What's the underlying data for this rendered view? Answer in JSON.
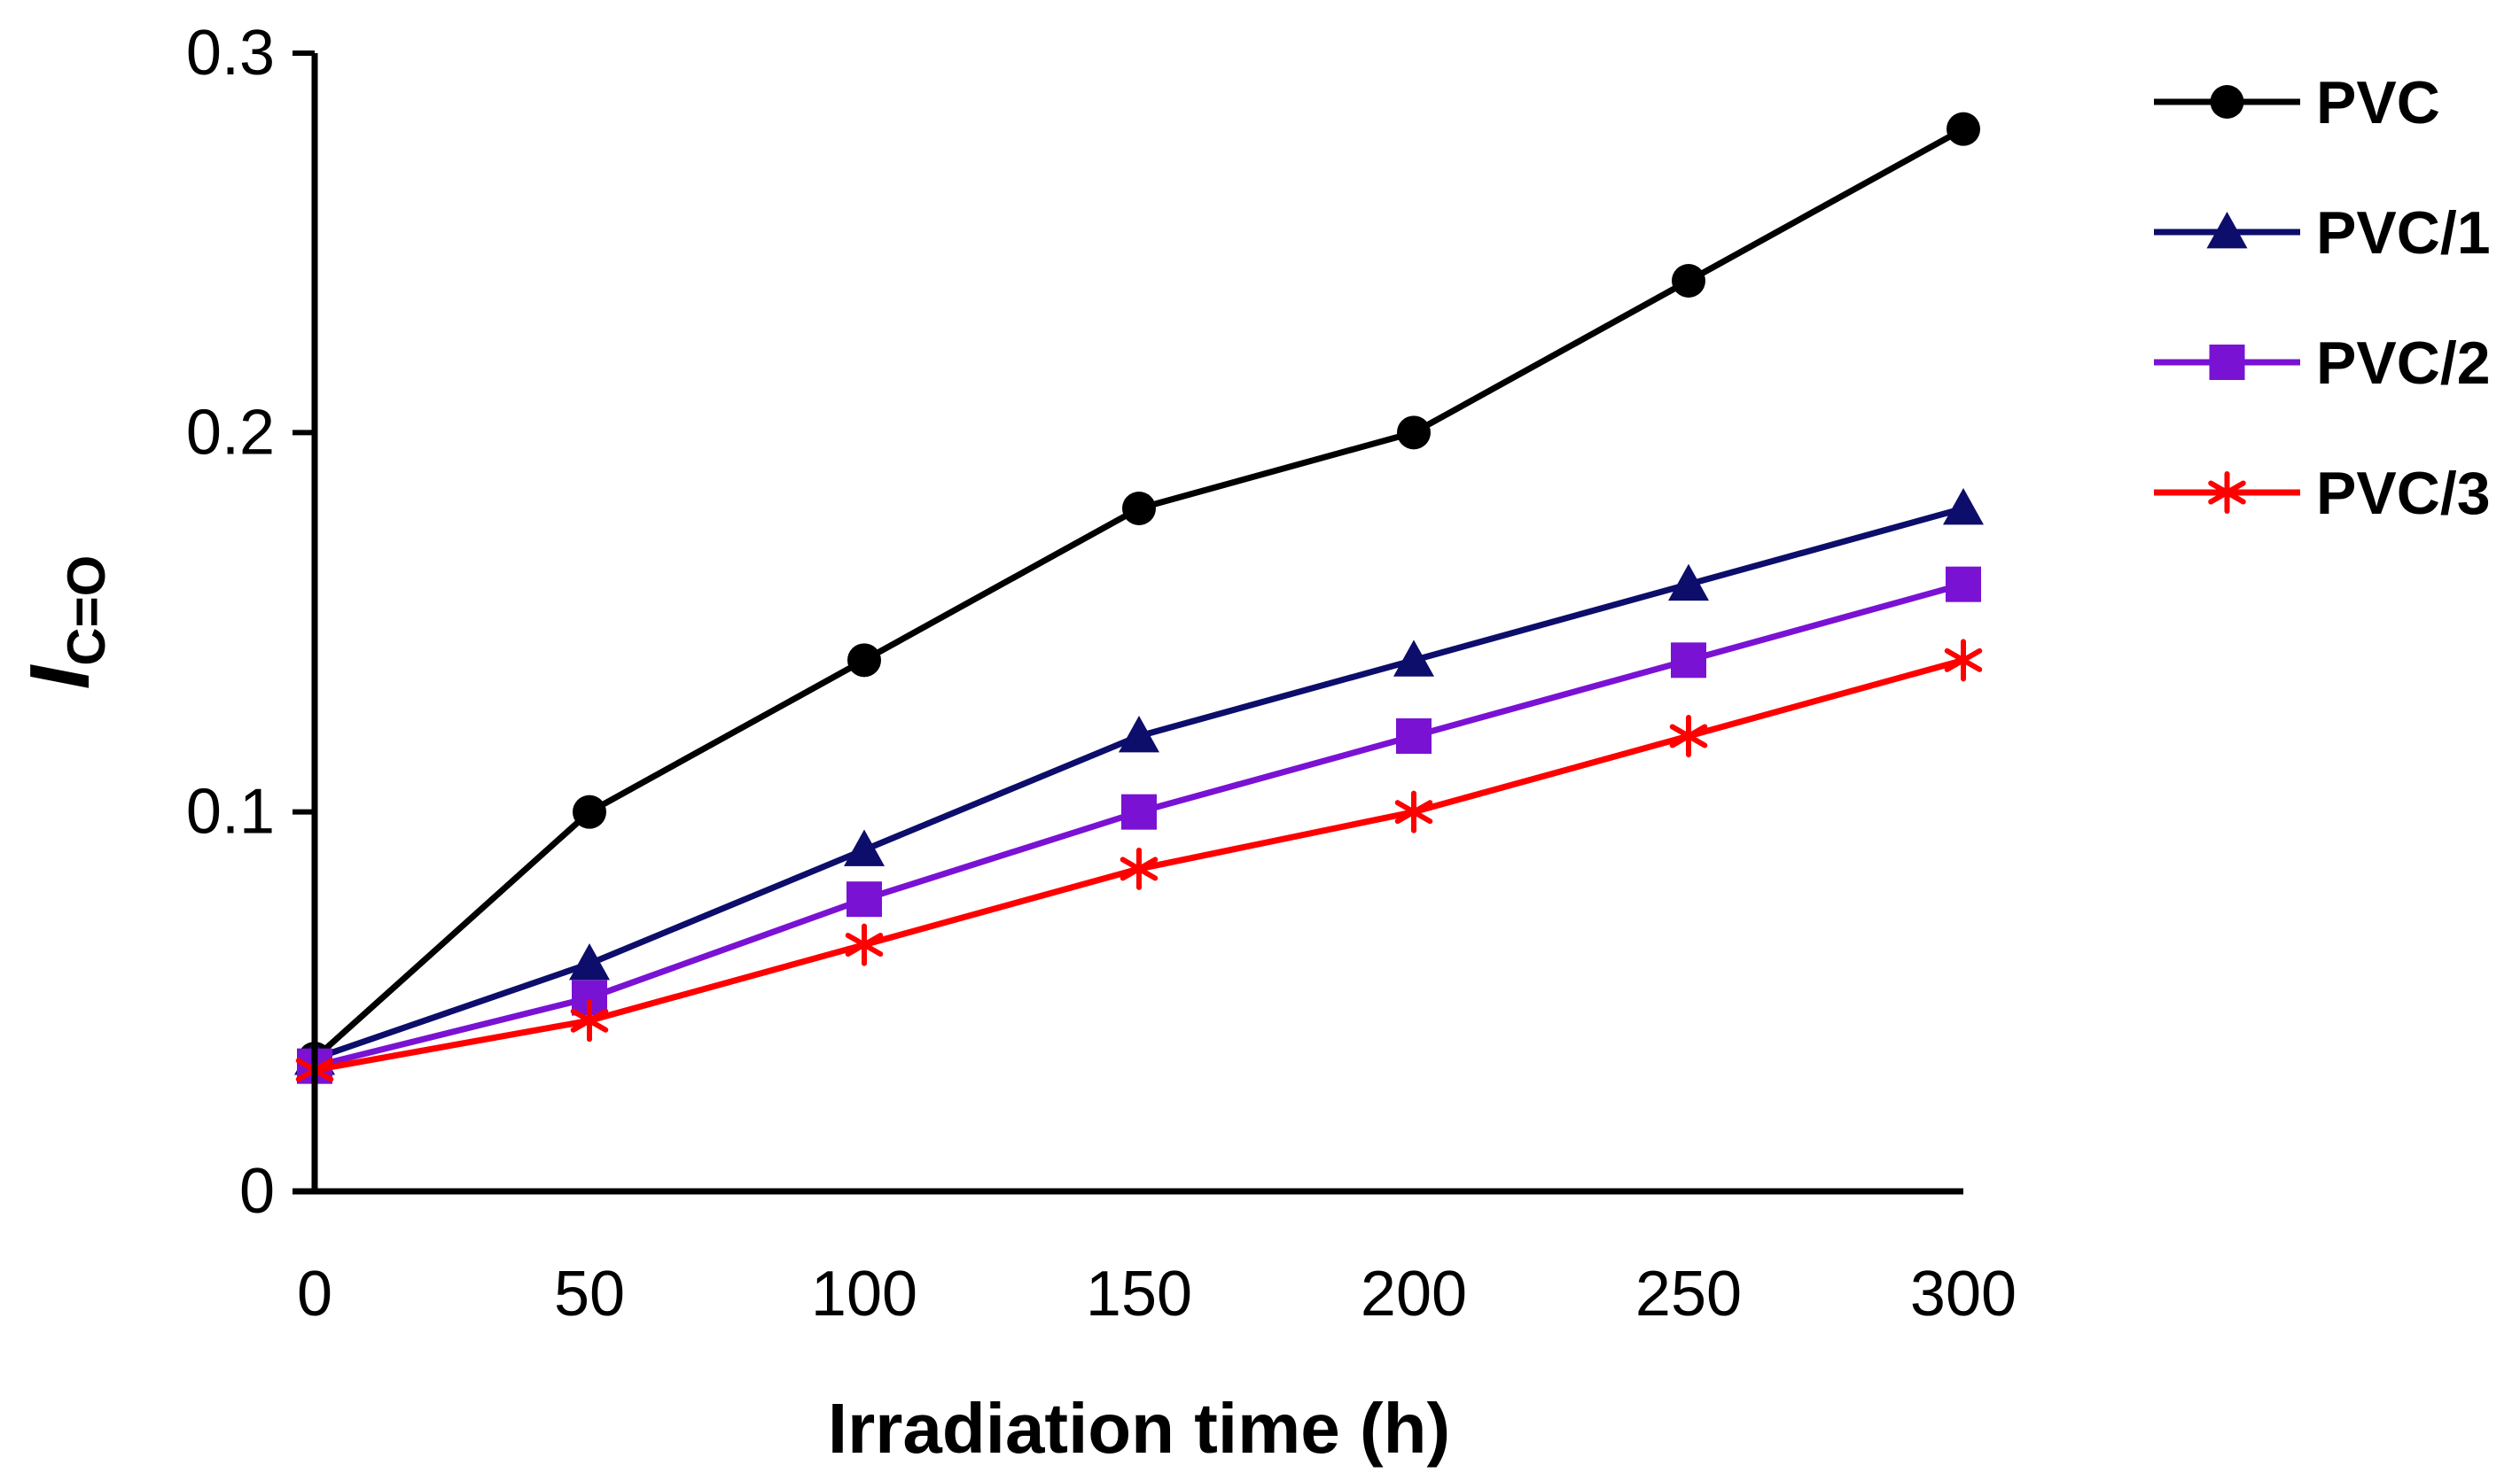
{
  "chart_data": {
    "type": "line",
    "title": "",
    "xlabel": "Irradiation time (h)",
    "ylabel": {
      "main": "I",
      "sub": "C=O"
    },
    "x": [
      0,
      50,
      100,
      150,
      200,
      250,
      300
    ],
    "x_ticks": [
      "0",
      "50",
      "100",
      "150",
      "200",
      "250",
      "300"
    ],
    "xlim": [
      0,
      300
    ],
    "y_ticks": [
      "0",
      "0.1",
      "0.2",
      "0.3"
    ],
    "ylim": [
      0,
      0.3
    ],
    "grid": false,
    "legend_position": "right",
    "series": [
      {
        "name": "PVC",
        "color": "#000000",
        "marker": "circle",
        "values": [
          0.035,
          0.1,
          0.14,
          0.18,
          0.2,
          0.24,
          0.28
        ]
      },
      {
        "name": "PVC/1",
        "color": "#0d0d6b",
        "marker": "triangle",
        "values": [
          0.035,
          0.06,
          0.09,
          0.12,
          0.14,
          0.16,
          0.18
        ]
      },
      {
        "name": "PVC/2",
        "color": "#7a12d4",
        "marker": "square",
        "values": [
          0.033,
          0.051,
          0.077,
          0.1,
          0.12,
          0.14,
          0.16
        ]
      },
      {
        "name": "PVC/3",
        "color": "#ff0000",
        "marker": "star",
        "values": [
          0.032,
          0.045,
          0.065,
          0.085,
          0.1,
          0.12,
          0.14
        ]
      }
    ]
  }
}
